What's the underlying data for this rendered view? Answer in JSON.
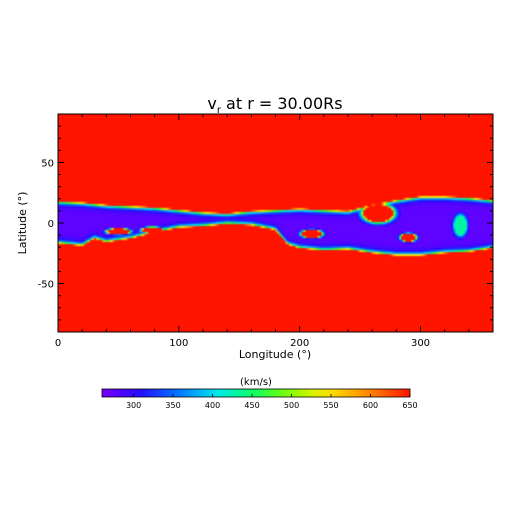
{
  "chart_data": {
    "type": "heatmap",
    "title_main": "v",
    "title_sub": "r",
    "title_rest": " at r = 30.00Rs",
    "xlabel": "Longitude (°)",
    "ylabel": "Latitude (°)",
    "xlim": [
      0,
      360
    ],
    "ylim": [
      -90,
      90
    ],
    "x_ticks": [
      0,
      100,
      200,
      300
    ],
    "y_ticks": [
      -50,
      0,
      50
    ],
    "colorbar": {
      "label": "(km/s)",
      "range": [
        260,
        650
      ],
      "ticks": [
        "300",
        "350",
        "400",
        "450",
        "500",
        "550",
        "600",
        "650"
      ],
      "tick_values": [
        300,
        350,
        400,
        450,
        500,
        550,
        600,
        650
      ]
    },
    "background_speed": 650,
    "slow_speed": 275,
    "colors": {
      "fast": "#ff1a00",
      "slow": "#7a1cff",
      "axis": "#000000"
    },
    "streamer_belt": {
      "upper_edge": [
        [
          0,
          18
        ],
        [
          20,
          17
        ],
        [
          40,
          15
        ],
        [
          60,
          14
        ],
        [
          80,
          13
        ],
        [
          100,
          11
        ],
        [
          120,
          9
        ],
        [
          140,
          8
        ],
        [
          160,
          10
        ],
        [
          180,
          11
        ],
        [
          200,
          12
        ],
        [
          220,
          11
        ],
        [
          240,
          10
        ],
        [
          260,
          15
        ],
        [
          280,
          19
        ],
        [
          300,
          22
        ],
        [
          320,
          22
        ],
        [
          340,
          21
        ],
        [
          360,
          19
        ]
      ],
      "lower_edge": [
        [
          0,
          -17
        ],
        [
          20,
          -19
        ],
        [
          30,
          -13
        ],
        [
          40,
          -16
        ],
        [
          60,
          -13
        ],
        [
          80,
          -8
        ],
        [
          100,
          -4
        ],
        [
          120,
          -3
        ],
        [
          140,
          -1
        ],
        [
          160,
          -2
        ],
        [
          180,
          -6
        ],
        [
          190,
          -18
        ],
        [
          200,
          -21
        ],
        [
          220,
          -23
        ],
        [
          240,
          -22
        ],
        [
          260,
          -25
        ],
        [
          280,
          -27
        ],
        [
          300,
          -27
        ],
        [
          320,
          -25
        ],
        [
          340,
          -24
        ],
        [
          360,
          -21
        ]
      ]
    },
    "fast_islands": [
      {
        "lon": 265,
        "lat": 8,
        "rlon": 12,
        "rlat": 7
      },
      {
        "lon": 50,
        "lat": -7,
        "rlon": 9,
        "rlat": 2.2
      },
      {
        "lon": 78,
        "lat": -6,
        "rlon": 8,
        "rlat": 2.4
      },
      {
        "lon": 210,
        "lat": -9,
        "rlon": 8,
        "rlat": 3
      },
      {
        "lon": 290,
        "lat": -12,
        "rlon": 6,
        "rlat": 3
      }
    ],
    "mid_islands": [
      {
        "lon": 333,
        "lat": -2,
        "rlon": 5,
        "rlat": 8
      }
    ]
  }
}
